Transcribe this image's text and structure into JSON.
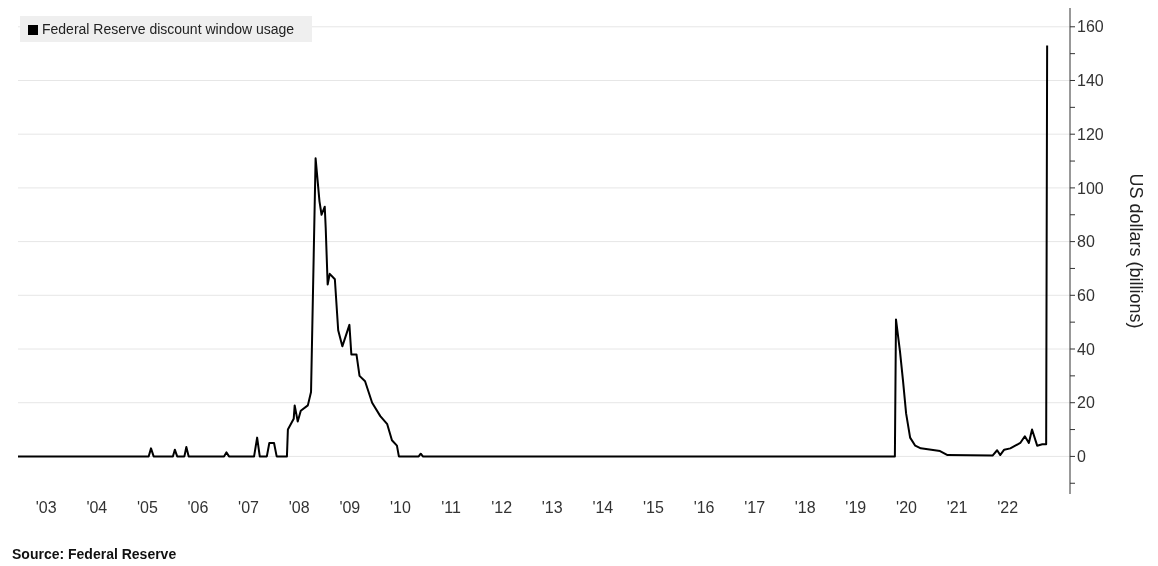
{
  "chart_data": {
    "type": "line",
    "ylabel": "US dollars (billions)",
    "annotations": [
      "Source: Federal Reserve"
    ],
    "legend": "top left",
    "grid": "y",
    "marker": "none",
    "line_style": "solid",
    "xlim": [
      "2002-12-10",
      "2023-09-24"
    ],
    "xticks": [
      {
        "value": "2003-07",
        "label": "'03"
      },
      {
        "value": "2004-07",
        "label": "'04"
      },
      {
        "value": "2005-07",
        "label": "'05"
      },
      {
        "value": "2006-07",
        "label": "'06"
      },
      {
        "value": "2007-07",
        "label": "'07"
      },
      {
        "value": "2008-07",
        "label": "'08"
      },
      {
        "value": "2009-07",
        "label": "'09"
      },
      {
        "value": "2010-07",
        "label": "'10"
      },
      {
        "value": "2011-07",
        "label": "'11"
      },
      {
        "value": "2012-07",
        "label": "'12"
      },
      {
        "value": "2013-07",
        "label": "'13"
      },
      {
        "value": "2014-07",
        "label": "'14"
      },
      {
        "value": "2015-07",
        "label": "'15"
      },
      {
        "value": "2016-07",
        "label": "'16"
      },
      {
        "value": "2017-07",
        "label": "'17"
      },
      {
        "value": "2018-07",
        "label": "'18"
      },
      {
        "value": "2019-07",
        "label": "'19"
      },
      {
        "value": "2020-07",
        "label": "'20"
      },
      {
        "value": "2021-07",
        "label": "'21"
      },
      {
        "value": "2022-07",
        "label": "'22"
      }
    ],
    "ylim": [
      -14,
      167
    ],
    "yticks": [
      {
        "value": -10,
        "label": null
      },
      0,
      {
        "value": 10,
        "label": null
      },
      20,
      {
        "value": 30,
        "label": null
      },
      40,
      {
        "value": 50,
        "label": null
      },
      60,
      {
        "value": 70,
        "label": null
      },
      80,
      {
        "value": 90,
        "label": null
      },
      100,
      {
        "value": 110,
        "label": null
      },
      120,
      {
        "value": 130,
        "label": null
      },
      140,
      {
        "value": 150,
        "label": null
      },
      160
    ],
    "series": [
      {
        "name": "Federal Reserve discount window usage",
        "color": "#000000",
        "x": [
          "2002-12-10",
          "2005-07-10",
          "2005-07-27",
          "2005-08-15",
          "2006-01-01",
          "2006-01-15",
          "2006-02-01",
          "2006-03-25",
          "2006-04-08",
          "2006-04-25",
          "2007-01-05",
          "2007-01-22",
          "2007-02-10",
          "2007-08-10",
          "2007-09-01",
          "2007-09-20",
          "2007-11-10",
          "2007-11-28",
          "2008-01-01",
          "2008-01-20",
          "2008-04-03",
          "2008-04-10",
          "2008-05-22",
          "2008-05-29",
          "2008-06-20",
          "2008-07-12",
          "2008-09-01",
          "2008-09-24",
          "2008-10-27",
          "2008-11-24",
          "2008-12-09",
          "2009-01-01",
          "2009-01-08",
          "2009-01-22",
          "2009-02-06",
          "2009-03-15",
          "2009-04-08",
          "2009-05-08",
          "2009-06-28",
          "2009-07-12",
          "2009-08-18",
          "2009-09-09",
          "2009-10-19",
          "2009-12-09",
          "2010-02-06",
          "2010-03-28",
          "2010-05-01",
          "2010-06-06",
          "2010-06-20",
          "2010-11-10",
          "2010-11-25",
          "2010-12-10",
          "2020-04-08",
          "2020-04-16",
          "2020-05-15",
          "2020-06-06",
          "2020-06-28",
          "2020-07-27",
          "2020-09-02",
          "2020-10-12",
          "2021-02-28",
          "2021-04-23",
          "2022-03-14",
          "2022-04-16",
          "2022-05-08",
          "2022-06-06",
          "2022-07-20",
          "2022-08-25",
          "2022-09-30",
          "2022-11-02",
          "2022-12-01",
          "2022-12-24",
          "2023-01-30",
          "2023-03-08",
          "2023-04-05",
          "2023-04-12"
        ],
        "values": [
          0,
          0,
          3,
          0,
          0,
          2.5,
          0,
          0,
          3.5,
          0,
          0,
          1.5,
          0,
          0,
          7,
          0,
          0,
          5,
          5,
          0,
          0,
          10,
          14,
          19,
          13,
          17,
          19,
          24,
          111,
          95,
          90,
          93,
          85,
          64,
          68,
          66,
          47,
          41,
          49,
          38,
          38,
          30,
          28,
          20,
          15,
          12,
          6,
          4,
          0,
          0,
          1,
          0,
          0,
          51,
          39,
          28,
          16,
          7,
          4,
          3,
          2,
          0.5,
          0.3,
          2.3,
          0.5,
          2.5,
          3,
          4,
          5,
          7.5,
          5,
          10,
          4,
          4.5,
          4.5,
          153
        ]
      }
    ]
  }
}
